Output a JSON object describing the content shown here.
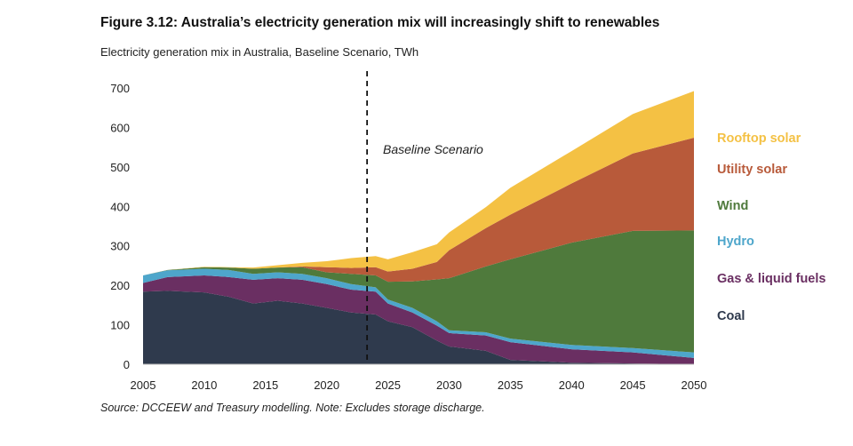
{
  "chart_data": {
    "type": "area",
    "stacked": true,
    "title": "Figure 3.12: Australia’s electricity generation mix will increasingly shift to renewables",
    "subtitle": "Electricity generation mix in Australia, Baseline Scenario, TWh",
    "source": "Source: DCCEEW and Treasury modelling. Note: Excludes storage discharge.",
    "xlabel": "",
    "ylabel": "",
    "xlim": [
      2005,
      2050
    ],
    "ylim": [
      0,
      700
    ],
    "x_ticks": [
      "2005",
      "2010",
      "2015",
      "2020",
      "2025",
      "2030",
      "2035",
      "2040",
      "2045",
      "2050"
    ],
    "y_ticks": [
      "0",
      "100",
      "200",
      "300",
      "400",
      "500",
      "600",
      "700"
    ],
    "grid": false,
    "legend_placement": "right",
    "annotation": {
      "text": "Baseline Scenario",
      "x": 2023.3
    },
    "x": [
      2005,
      2007,
      2010,
      2012,
      2014,
      2016,
      2018,
      2020,
      2022,
      2024,
      2025,
      2027,
      2029,
      2030,
      2033,
      2035,
      2040,
      2045,
      2050
    ],
    "series": [
      {
        "name": "Coal",
        "color": "#2f3a4d",
        "values": [
          184,
          186,
          182,
          171,
          154,
          161,
          154,
          143,
          131,
          126,
          109,
          94,
          60,
          45,
          34,
          11,
          4,
          2,
          0
        ]
      },
      {
        "name": "Gas & liquid fuels",
        "color": "#6a2f62",
        "values": [
          22,
          35,
          43,
          50,
          60,
          57,
          60,
          60,
          58,
          58,
          45,
          37,
          38,
          34,
          39,
          45,
          34,
          28,
          16
        ]
      },
      {
        "name": "Hydro",
        "color": "#4ea6cb",
        "values": [
          19,
          17,
          17,
          18,
          15,
          15,
          15,
          15,
          14,
          11,
          10,
          12,
          11,
          7,
          8,
          9,
          11,
          11,
          14
        ]
      },
      {
        "name": "Wind",
        "color": "#4f7a3c",
        "values": [
          0,
          1,
          4,
          6,
          13,
          12,
          17,
          15,
          26,
          30,
          45,
          67,
          106,
          132,
          167,
          201,
          259,
          297,
          309
        ]
      },
      {
        "name": "Utility solar",
        "color": "#b85a3a",
        "values": [
          0,
          0,
          0,
          0,
          0,
          0,
          2,
          13,
          15,
          21,
          26,
          32,
          44,
          71,
          97,
          113,
          150,
          196,
          235
        ]
      },
      {
        "name": "Rooftop solar",
        "color": "#f4c144",
        "values": [
          0,
          0,
          1,
          1,
          3,
          6,
          9,
          15,
          25,
          28,
          31,
          42,
          45,
          45,
          53,
          68,
          82,
          100,
          118
        ]
      }
    ]
  }
}
